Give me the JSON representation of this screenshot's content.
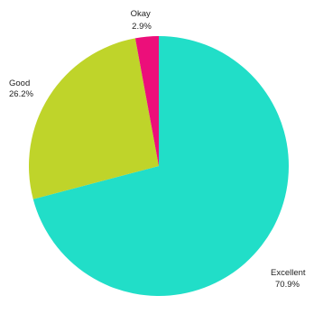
{
  "chart_data": {
    "type": "pie",
    "title": "",
    "start_angle_deg": 0,
    "direction": "clockwise",
    "legend": "none",
    "slices": [
      {
        "label": "Excellent",
        "value": 70.9,
        "value_label": "70.9%",
        "color": "#21DEC8"
      },
      {
        "label": "Good",
        "value": 26.2,
        "value_label": "26.2%",
        "color": "#BFD42A"
      },
      {
        "label": "Okay",
        "value": 2.9,
        "value_label": "2.9%",
        "color": "#EC0F7A"
      }
    ]
  }
}
